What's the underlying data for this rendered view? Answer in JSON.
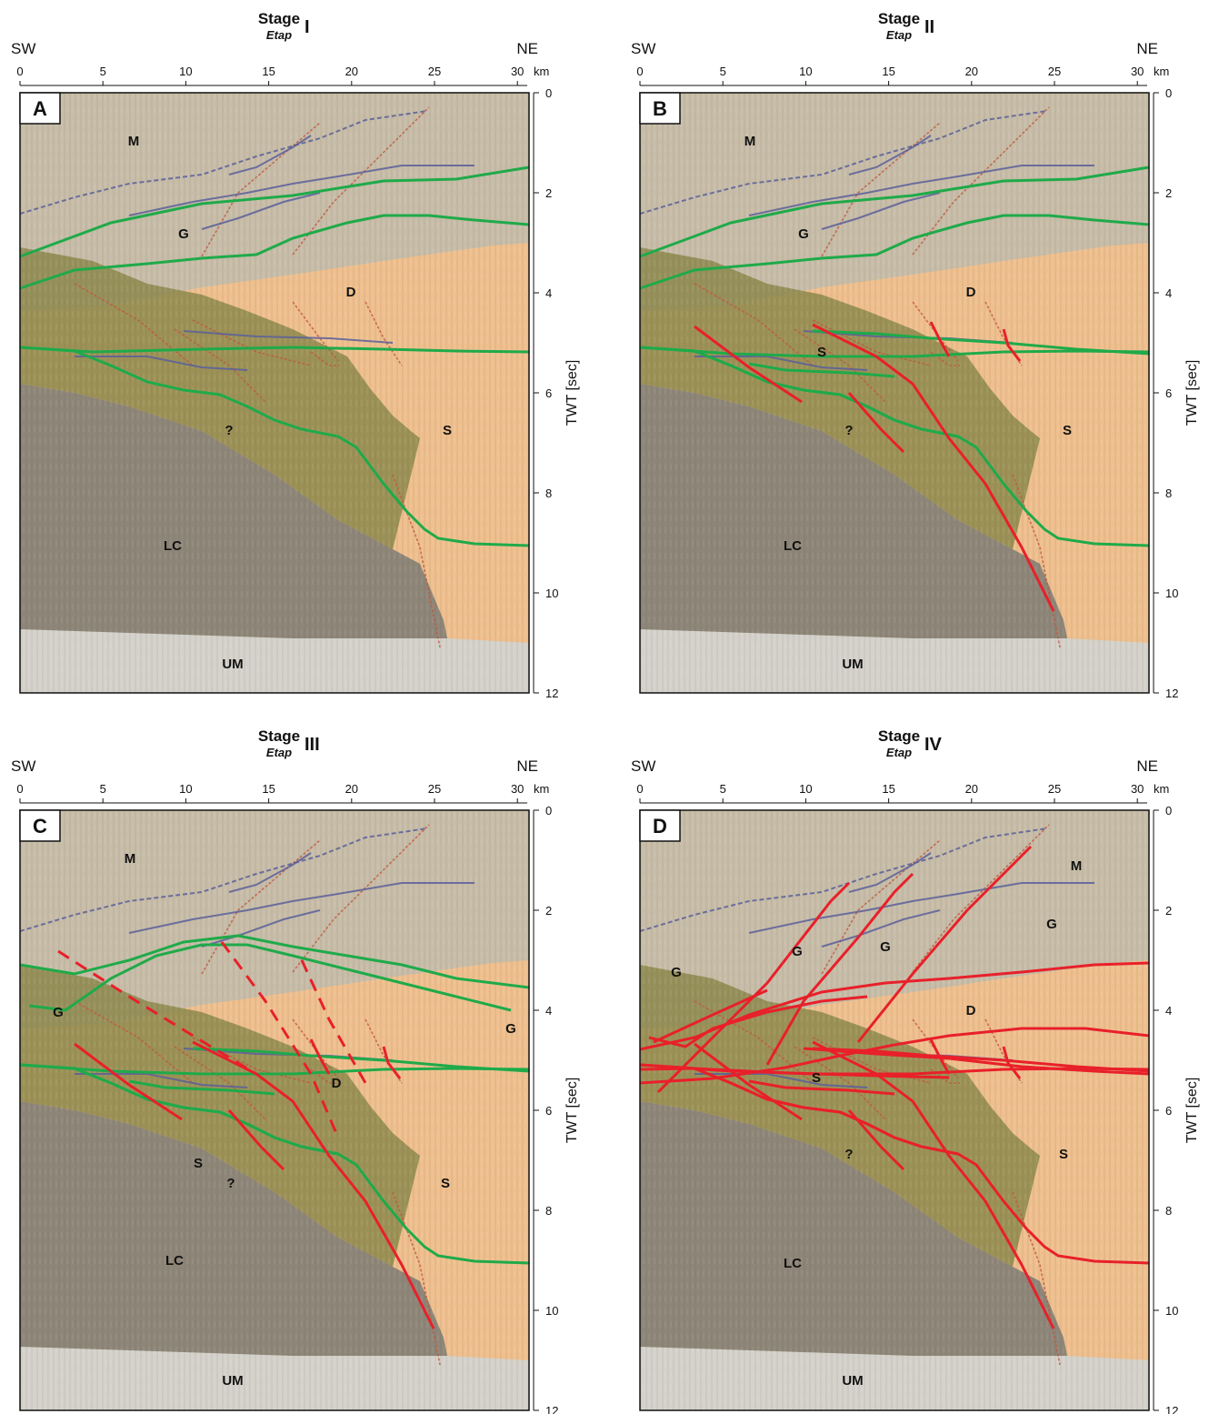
{
  "colors": {
    "sediment": "#efc08e",
    "mantle_top": "#c7bda8",
    "lower_crust": "#8e8678",
    "wedge": "#8d8a4e",
    "upper_mantle": "#d4d2ca",
    "green_horizon": "#1faa4a",
    "red_fault": "#e8202a",
    "blue_reflector": "#5a5f9a"
  },
  "common": {
    "sw": "SW",
    "ne": "NE",
    "stage": "Stage",
    "etap": "Etap",
    "km_unit": "km",
    "y_axis_label": "TWT [sec]",
    "x_ticks": [
      "0",
      "5",
      "10",
      "15",
      "20",
      "25",
      "30"
    ],
    "y_ticks": [
      "0",
      "2",
      "4",
      "6",
      "8",
      "10",
      "12"
    ]
  },
  "panels": [
    {
      "letter": "A",
      "roman": "I",
      "layer_labels": [
        "M",
        "G",
        "D",
        "S",
        "?",
        "LC",
        "UM"
      ]
    },
    {
      "letter": "B",
      "roman": "II",
      "layer_labels": [
        "M",
        "G",
        "D",
        "S",
        "S",
        "?",
        "LC",
        "UM"
      ]
    },
    {
      "letter": "C",
      "roman": "III",
      "layer_labels": [
        "M",
        "G",
        "G",
        "D",
        "S",
        "S",
        "?",
        "LC",
        "UM"
      ]
    },
    {
      "letter": "D",
      "roman": "IV",
      "layer_labels": [
        "M",
        "G",
        "G",
        "G",
        "G",
        "D",
        "S",
        "S",
        "?",
        "LC",
        "UM"
      ]
    }
  ]
}
